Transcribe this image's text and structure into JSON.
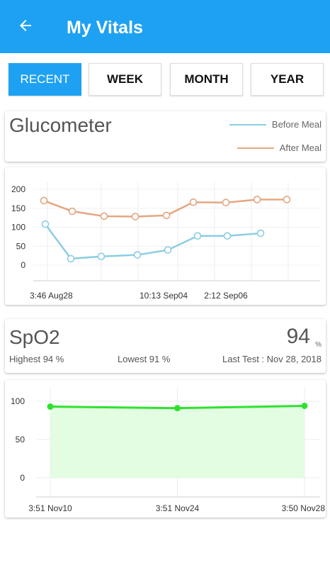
{
  "header": {
    "title": "My Vitals",
    "back_icon": "arrow-back-icon"
  },
  "tabs": [
    {
      "label": "RECENT",
      "active": true
    },
    {
      "label": "WEEK",
      "active": false
    },
    {
      "label": "MONTH",
      "active": false
    },
    {
      "label": "YEAR",
      "active": false
    }
  ],
  "colors": {
    "accent": "#1ea1f2",
    "before_meal": "#8ccde3",
    "after_meal": "#e3a783",
    "spo2_line": "#2fe12f",
    "spo2_fill": "#e2fde2"
  },
  "glucometer": {
    "title": "Glucometer",
    "legend": {
      "before": "Before Meal",
      "after": "After Meal"
    }
  },
  "spo2": {
    "title": "SpO2",
    "value": "94",
    "unit": "%",
    "highest": "Highest 94 %",
    "lowest": "Lowest 91 %",
    "last_test": "Last Test : Nov 28, 2018"
  },
  "chart_data": [
    {
      "type": "line",
      "y_ticks": [
        "200",
        "150",
        "100",
        "50",
        "0"
      ],
      "ylim": [
        0,
        200
      ],
      "x_tick_labels": [
        "3:46 Aug28",
        "10:13 Sep04",
        "2:12 Sep06"
      ],
      "series": [
        {
          "name": "Before Meal",
          "values": [
            108,
            17,
            23,
            27,
            40,
            77,
            77,
            84
          ]
        },
        {
          "name": "After Meal",
          "values": [
            170,
            142,
            129,
            128,
            131,
            166,
            165,
            173,
            173
          ]
        }
      ],
      "grid": true
    },
    {
      "type": "area",
      "y_ticks": [
        "100",
        "50",
        "0"
      ],
      "ylim": [
        0,
        100
      ],
      "categories": [
        "3:51 Nov10",
        "3:51 Nov24",
        "3:50 Nov28"
      ],
      "series": [
        {
          "values": [
            93,
            91,
            94
          ]
        }
      ],
      "grid": true
    }
  ]
}
